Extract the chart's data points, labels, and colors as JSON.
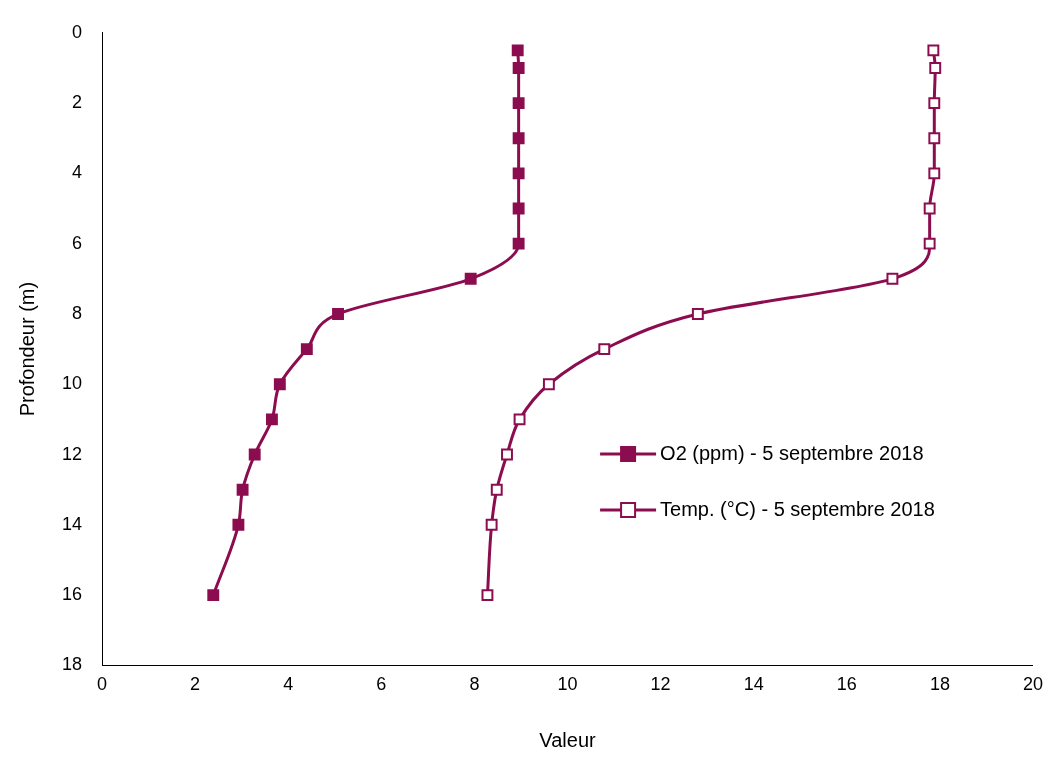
{
  "chart_data": {
    "type": "line",
    "xlabel": "Valeur",
    "ylabel": "Profondeur (m)",
    "xlim": [
      0,
      20
    ],
    "xticks": [
      0,
      2,
      4,
      6,
      8,
      10,
      12,
      14,
      16,
      18,
      20
    ],
    "ylim": [
      18,
      0
    ],
    "yticks": [
      0,
      2,
      4,
      6,
      8,
      10,
      12,
      14,
      16,
      18
    ],
    "grid": false,
    "legend": "right",
    "marker": "square",
    "line_style": "solid",
    "series": [
      {
        "name": "O2 (ppm) - 5 septembre 2018",
        "color": "#8c0d4f",
        "x": [
          8.93,
          8.95,
          8.95,
          8.95,
          8.95,
          8.95,
          8.95,
          7.92,
          5.07,
          4.4,
          3.82,
          3.65,
          3.28,
          3.02,
          2.93,
          2.39
        ],
        "values": [
          0.5,
          1,
          2,
          3,
          4,
          5,
          6,
          7,
          8,
          9,
          10,
          11,
          12,
          13,
          14,
          16
        ]
      },
      {
        "name": "Temp. (°C) - 5 septembre 2018",
        "color": "#8c0d4f",
        "x": [
          17.86,
          17.9,
          17.88,
          17.88,
          17.88,
          17.78,
          17.78,
          16.98,
          12.8,
          10.79,
          9.6,
          8.97,
          8.7,
          8.48,
          8.37,
          8.28
        ],
        "values": [
          0.5,
          1,
          2,
          3,
          4,
          5,
          6,
          7,
          8,
          9,
          10,
          11,
          12,
          13,
          14,
          16
        ]
      }
    ]
  }
}
